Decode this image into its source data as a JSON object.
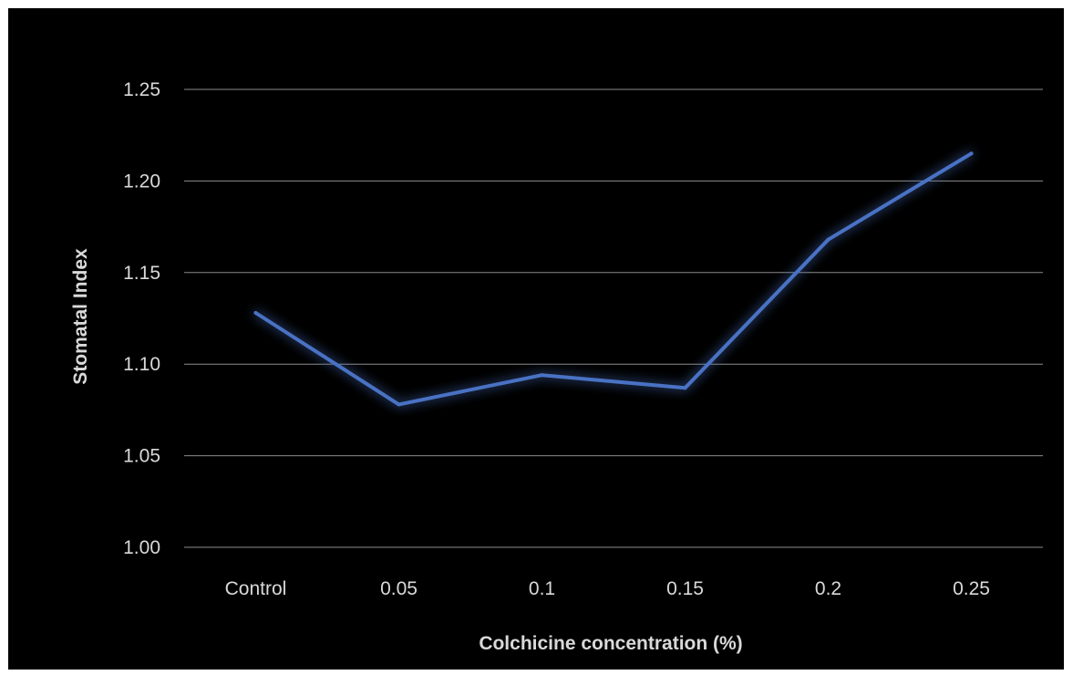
{
  "chart_data": {
    "type": "line",
    "categories": [
      "Control",
      "0.05",
      "0.1",
      "0.15",
      "0.2",
      "0.25"
    ],
    "series": [
      {
        "values": [
          1.128,
          1.078,
          1.094,
          1.087,
          1.168,
          1.215
        ],
        "color": "#4a72c4"
      }
    ],
    "xlabel": "Colchicine concentration  (%)",
    "ylabel": "Stomatal Index",
    "ylim": [
      1.0,
      1.25
    ],
    "yticks": [
      "1.00",
      "1.05",
      "1.10",
      "1.15",
      "1.20",
      "1.25"
    ],
    "grid": true,
    "background": "#000000",
    "text_color": "#d9d9d9",
    "grid_color": "#8c8c8c"
  }
}
